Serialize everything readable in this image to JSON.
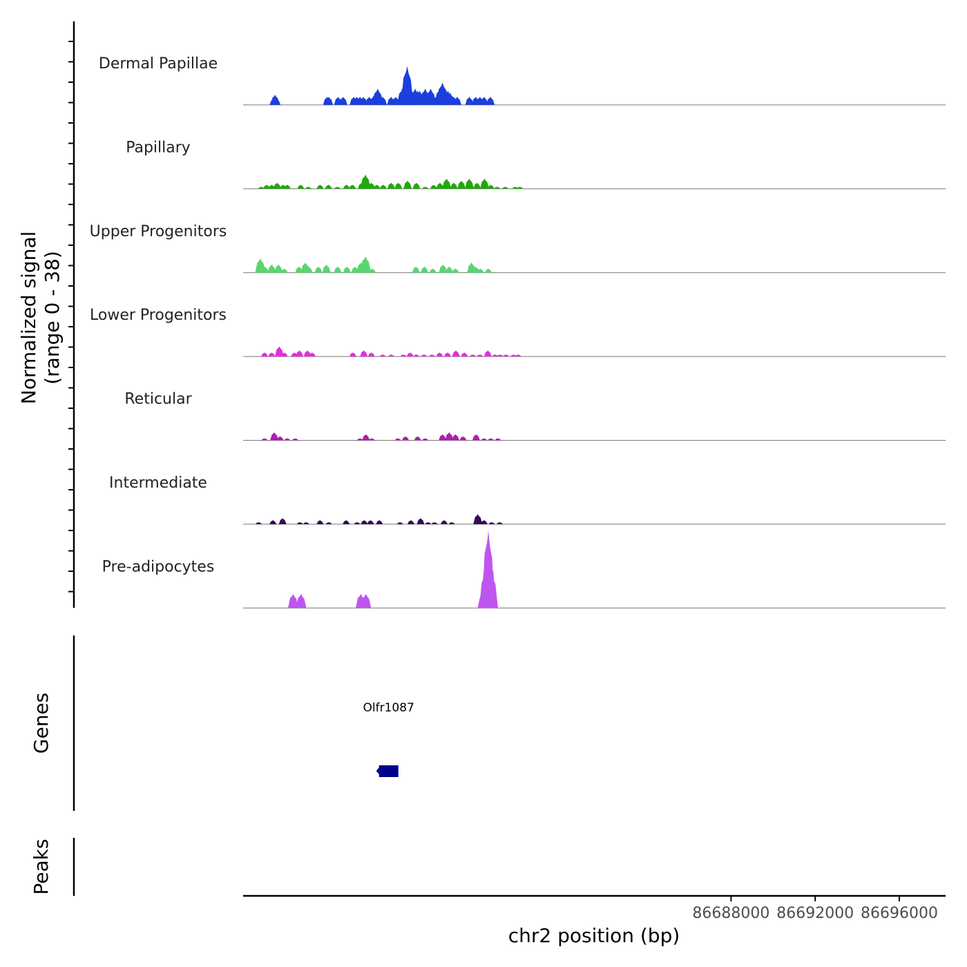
{
  "chart_data": {
    "type": "area",
    "chromosome": "chr2",
    "xlabel": "chr2 position (bp)",
    "ylabel_line1": "Normalized signal",
    "ylabel_line2": "(range 0 - 38)",
    "signal_range": [
      0,
      38
    ],
    "xlim": [
      86664800,
      86698200
    ],
    "x_ticks": [
      86688000,
      86692000,
      86696000
    ],
    "x_tick_labels": [
      "86688000",
      "86692000",
      "86696000"
    ],
    "tracks": [
      {
        "name": "Dermal Papillae",
        "color": "#1c3fdc",
        "peaks": [
          [
            86666240,
            3
          ],
          [
            86666320,
            5
          ],
          [
            86666400,
            3
          ],
          [
            86668800,
            4
          ],
          [
            86668880,
            4
          ],
          [
            86669320,
            4
          ],
          [
            86669560,
            4
          ],
          [
            86670060,
            4
          ],
          [
            86670200,
            4
          ],
          [
            86670360,
            4
          ],
          [
            86670520,
            4
          ],
          [
            86670800,
            4
          ],
          [
            86670980,
            4
          ],
          [
            86671120,
            6
          ],
          [
            86671200,
            8
          ],
          [
            86671320,
            5
          ],
          [
            86671440,
            4
          ],
          [
            86671840,
            4
          ],
          [
            86672060,
            4
          ],
          [
            86672380,
            8
          ],
          [
            86672520,
            11
          ],
          [
            86672600,
            19
          ],
          [
            86672680,
            9
          ],
          [
            86672820,
            7
          ],
          [
            86672980,
            8
          ],
          [
            86673100,
            7
          ],
          [
            86673200,
            7
          ],
          [
            86673460,
            8
          ],
          [
            86673720,
            8
          ],
          [
            86673960,
            4
          ],
          [
            86674160,
            8
          ],
          [
            86674280,
            11
          ],
          [
            86674360,
            7
          ],
          [
            86674460,
            7
          ],
          [
            86674540,
            7
          ],
          [
            86674640,
            6
          ],
          [
            86674820,
            4
          ],
          [
            86674980,
            4
          ],
          [
            86675560,
            4
          ],
          [
            86675860,
            4
          ],
          [
            86676060,
            4
          ],
          [
            86676260,
            4
          ],
          [
            86676560,
            4
          ]
        ]
      },
      {
        "name": "Papillary",
        "color": "#20a80a",
        "peaks": [
          [
            86665660,
            1
          ],
          [
            86665920,
            2
          ],
          [
            86666160,
            2
          ],
          [
            86666420,
            3
          ],
          [
            86666700,
            2
          ],
          [
            86666900,
            2
          ],
          [
            86667540,
            2
          ],
          [
            86667900,
            1
          ],
          [
            86668460,
            2
          ],
          [
            86668860,
            2
          ],
          [
            86669280,
            1
          ],
          [
            86669720,
            2
          ],
          [
            86670000,
            2
          ],
          [
            86670440,
            3
          ],
          [
            86670620,
            7
          ],
          [
            86670900,
            3
          ],
          [
            86671160,
            2
          ],
          [
            86671460,
            2
          ],
          [
            86671840,
            3
          ],
          [
            86672180,
            3
          ],
          [
            86672620,
            4
          ],
          [
            86673040,
            3
          ],
          [
            86673460,
            1
          ],
          [
            86673860,
            2
          ],
          [
            86674160,
            3
          ],
          [
            86674480,
            5
          ],
          [
            86674820,
            3
          ],
          [
            86675180,
            4
          ],
          [
            86675560,
            5
          ],
          [
            86675920,
            3
          ],
          [
            86676280,
            5
          ],
          [
            86676580,
            2
          ],
          [
            86676880,
            1
          ],
          [
            86677260,
            1
          ],
          [
            86677740,
            1
          ],
          [
            86677960,
            1
          ]
        ]
      },
      {
        "name": "Upper Progenitors",
        "color": "#5ad570",
        "peaks": [
          [
            86665620,
            7
          ],
          [
            86665840,
            3
          ],
          [
            86666160,
            4
          ],
          [
            86666480,
            4
          ],
          [
            86666760,
            2
          ],
          [
            86667460,
            3
          ],
          [
            86667760,
            5
          ],
          [
            86667920,
            3
          ],
          [
            86668380,
            3
          ],
          [
            86668760,
            4
          ],
          [
            86669300,
            3
          ],
          [
            86669740,
            3
          ],
          [
            86670120,
            3
          ],
          [
            86670400,
            5
          ],
          [
            86670620,
            8
          ],
          [
            86670940,
            2
          ],
          [
            86673020,
            3
          ],
          [
            86673420,
            3
          ],
          [
            86673820,
            2
          ],
          [
            86674300,
            4
          ],
          [
            86674600,
            3
          ],
          [
            86674900,
            2
          ],
          [
            86675660,
            5
          ],
          [
            86675860,
            3
          ],
          [
            86676080,
            2
          ],
          [
            86676460,
            2
          ]
        ]
      },
      {
        "name": "Lower Progenitors",
        "color": "#e22ee0",
        "peaks": [
          [
            86665820,
            2
          ],
          [
            86666160,
            2
          ],
          [
            86666520,
            5
          ],
          [
            86666760,
            2
          ],
          [
            86667240,
            2
          ],
          [
            86667480,
            3
          ],
          [
            86667860,
            3
          ],
          [
            86668080,
            2
          ],
          [
            86670020,
            2
          ],
          [
            86670540,
            3
          ],
          [
            86670900,
            2
          ],
          [
            86671440,
            1
          ],
          [
            86671840,
            1
          ],
          [
            86672420,
            1
          ],
          [
            86672740,
            2
          ],
          [
            86673040,
            1
          ],
          [
            86673400,
            1
          ],
          [
            86673780,
            1
          ],
          [
            86674140,
            2
          ],
          [
            86674520,
            2
          ],
          [
            86674920,
            3
          ],
          [
            86675320,
            2
          ],
          [
            86675720,
            1
          ],
          [
            86676060,
            1
          ],
          [
            86676440,
            3
          ],
          [
            86676780,
            1
          ],
          [
            86677020,
            1
          ],
          [
            86677300,
            1
          ],
          [
            86677660,
            1
          ],
          [
            86677880,
            1
          ]
        ]
      },
      {
        "name": "Reticular",
        "color": "#aa22aa",
        "peaks": [
          [
            86665820,
            1
          ],
          [
            86666280,
            4
          ],
          [
            86666560,
            2
          ],
          [
            86666900,
            1
          ],
          [
            86667280,
            1
          ],
          [
            86670360,
            1
          ],
          [
            86670640,
            3
          ],
          [
            86670920,
            1
          ],
          [
            86672160,
            1
          ],
          [
            86672520,
            2
          ],
          [
            86673100,
            2
          ],
          [
            86673460,
            1
          ],
          [
            86674280,
            3
          ],
          [
            86674600,
            4
          ],
          [
            86674900,
            3
          ],
          [
            86675260,
            2
          ],
          [
            86675880,
            3
          ],
          [
            86676260,
            1
          ],
          [
            86676580,
            1
          ],
          [
            86676920,
            1
          ]
        ]
      },
      {
        "name": "Intermediate",
        "color": "#340b54",
        "peaks": [
          [
            86665540,
            1
          ],
          [
            86666220,
            2
          ],
          [
            86666680,
            3
          ],
          [
            86667500,
            1
          ],
          [
            86667800,
            1
          ],
          [
            86668460,
            2
          ],
          [
            86668880,
            1
          ],
          [
            86669700,
            2
          ],
          [
            86670220,
            1
          ],
          [
            86670560,
            2
          ],
          [
            86670860,
            2
          ],
          [
            86671280,
            2
          ],
          [
            86672260,
            1
          ],
          [
            86672780,
            2
          ],
          [
            86673240,
            3
          ],
          [
            86673600,
            1
          ],
          [
            86673900,
            1
          ],
          [
            86674360,
            2
          ],
          [
            86674720,
            1
          ],
          [
            86675960,
            5
          ],
          [
            86676260,
            2
          ],
          [
            86676620,
            1
          ],
          [
            86677000,
            1
          ]
        ]
      },
      {
        "name": "Pre-adipocytes",
        "color": "#bf55ef",
        "peaks": [
          [
            86667180,
            7
          ],
          [
            86667560,
            7
          ],
          [
            86670400,
            7
          ],
          [
            86670640,
            7
          ],
          [
            86676200,
            7
          ],
          [
            86676320,
            18
          ],
          [
            86676400,
            24
          ],
          [
            86676460,
            38
          ],
          [
            86676520,
            27
          ],
          [
            86676620,
            18
          ]
        ]
      }
    ],
    "genes": {
      "label": "Genes",
      "items": [
        {
          "name": "Olfr1087",
          "start": 86671260,
          "end": 86672180,
          "strand": "-",
          "color": "#00008b"
        }
      ]
    },
    "peaks_track": {
      "label": "Peaks",
      "items": []
    }
  }
}
